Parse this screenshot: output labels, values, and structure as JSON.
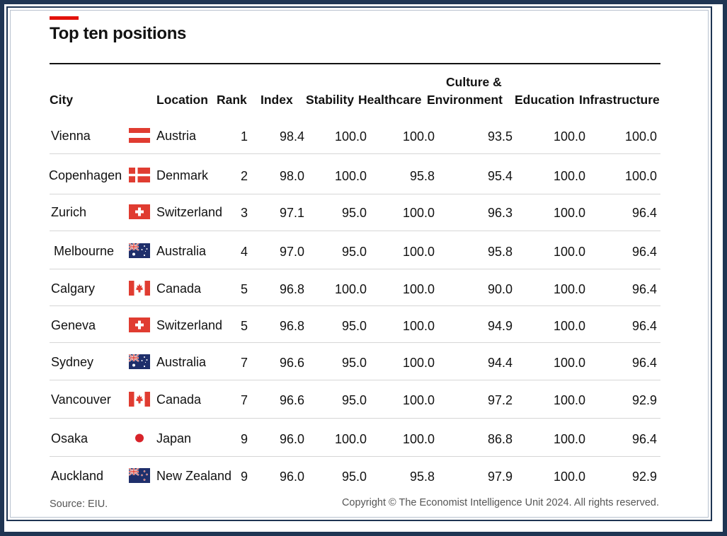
{
  "title": "Top ten positions",
  "headers": {
    "city": "City",
    "location": "Location",
    "rank": "Rank",
    "index": "Index",
    "stability": "Stability",
    "healthcare": "Healthcare",
    "culture_line1": "Culture &",
    "culture_line2": "Environment",
    "education": "Education",
    "infrastructure": "Infrastructure"
  },
  "chart_data": {
    "type": "table",
    "title": "Top ten positions",
    "columns": [
      "City",
      "Location",
      "Rank",
      "Index",
      "Stability",
      "Healthcare",
      "Culture & Environment",
      "Education",
      "Infrastructure"
    ],
    "rows": [
      {
        "city": "Vienna",
        "location": "Austria",
        "flag": "austria-flag-icon",
        "rank": "1",
        "index": "98.4",
        "stability": "100.0",
        "healthcare": "100.0",
        "culture": "93.5",
        "education": "100.0",
        "infrastructure": "100.0"
      },
      {
        "city": "Copenhagen",
        "location": "Denmark",
        "flag": "denmark-flag-icon",
        "rank": "2",
        "index": "98.0",
        "stability": "100.0",
        "healthcare": "95.8",
        "culture": "95.4",
        "education": "100.0",
        "infrastructure": "100.0"
      },
      {
        "city": "Zurich",
        "location": "Switzerland",
        "flag": "switzerland-flag-icon",
        "rank": "3",
        "index": "97.1",
        "stability": "95.0",
        "healthcare": "100.0",
        "culture": "96.3",
        "education": "100.0",
        "infrastructure": "96.4"
      },
      {
        "city": "Melbourne",
        "location": "Australia",
        "flag": "australia-flag-icon",
        "rank": "4",
        "index": "97.0",
        "stability": "95.0",
        "healthcare": "100.0",
        "culture": "95.8",
        "education": "100.0",
        "infrastructure": "96.4"
      },
      {
        "city": "Calgary",
        "location": "Canada",
        "flag": "canada-flag-icon",
        "rank": "5",
        "index": "96.8",
        "stability": "100.0",
        "healthcare": "100.0",
        "culture": "90.0",
        "education": "100.0",
        "infrastructure": "96.4"
      },
      {
        "city": "Geneva",
        "location": "Switzerland",
        "flag": "switzerland-flag-icon",
        "rank": "5",
        "index": "96.8",
        "stability": "95.0",
        "healthcare": "100.0",
        "culture": "94.9",
        "education": "100.0",
        "infrastructure": "96.4"
      },
      {
        "city": "Sydney",
        "location": "Australia",
        "flag": "australia-flag-icon",
        "rank": "7",
        "index": "96.6",
        "stability": "95.0",
        "healthcare": "100.0",
        "culture": "94.4",
        "education": "100.0",
        "infrastructure": "96.4"
      },
      {
        "city": "Vancouver",
        "location": "Canada",
        "flag": "canada-flag-icon",
        "rank": "7",
        "index": "96.6",
        "stability": "95.0",
        "healthcare": "100.0",
        "culture": "97.2",
        "education": "100.0",
        "infrastructure": "92.9"
      },
      {
        "city": "Osaka",
        "location": "Japan",
        "flag": "japan-flag-icon",
        "rank": "9",
        "index": "96.0",
        "stability": "100.0",
        "healthcare": "100.0",
        "culture": "86.8",
        "education": "100.0",
        "infrastructure": "96.4"
      },
      {
        "city": "Auckland",
        "location": "New Zealand",
        "flag": "new-zealand-flag-icon",
        "rank": "9",
        "index": "96.0",
        "stability": "95.0",
        "healthcare": "95.8",
        "culture": "97.9",
        "education": "100.0",
        "infrastructure": "92.9"
      }
    ]
  },
  "footer": {
    "source": "Source: EIU.",
    "copyright": "Copyright © The Economist Intelligence Unit 2024. All rights reserved."
  },
  "colors": {
    "accent": "#e3120b",
    "frame": "#1f3553",
    "text": "#121212",
    "flag_red": "#e03c31",
    "flag_navy": "#1f2f6b"
  }
}
